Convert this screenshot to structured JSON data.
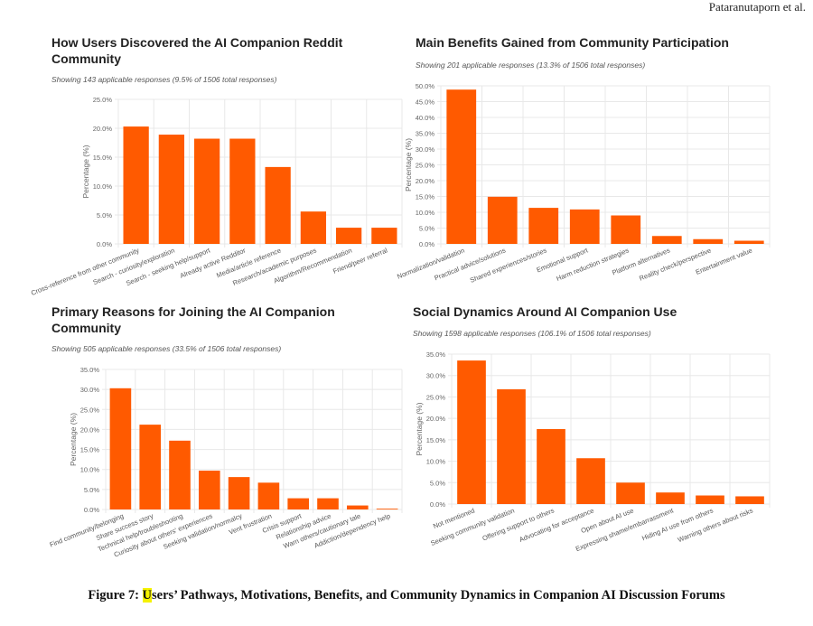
{
  "running_head": "Pataranutaporn et al.",
  "colors": {
    "bar": "#FF5A00",
    "grid": "#e8e8e8",
    "axis_text": "#666666"
  },
  "caption": {
    "label": "Figure 7:",
    "highlight": "U",
    "text": "sers’ Pathways, Motivations, Benefits, and Community Dynamics in Companion AI Discussion Forums"
  },
  "chart_data": [
    {
      "type": "bar",
      "title": "How Users Discovered the AI Companion Reddit Community",
      "subtitle": "Showing 143 applicable responses (9.5% of 1506 total responses)",
      "xlabel": "",
      "ylabel": "Percentage (%)",
      "ylim": [
        0,
        25
      ],
      "ytick_step": 5,
      "yticks": [
        "0.0%",
        "5.0%",
        "10.0%",
        "15.0%",
        "20.0%",
        "25.0%"
      ],
      "grid": true,
      "categories": [
        "Cross-reference from other community",
        "Search - curiosity/exploration",
        "Search - seeking help/support",
        "Already active Redditor",
        "Media/article reference",
        "Research/academic purposes",
        "Algorithm/Recommendation",
        "Friend/peer referral"
      ],
      "values": [
        20.3,
        18.9,
        18.2,
        18.2,
        13.3,
        5.6,
        2.8,
        2.8
      ]
    },
    {
      "type": "bar",
      "title": "Main Benefits Gained from Community Participation",
      "subtitle": "Showing 201 applicable responses (13.3% of 1506 total responses)",
      "xlabel": "",
      "ylabel": "Percentage (%)",
      "ylim": [
        0,
        50
      ],
      "ytick_step": 5,
      "yticks": [
        "0.0%",
        "5.0%",
        "10.0%",
        "15.0%",
        "20.0%",
        "25.0%",
        "30.0%",
        "35.0%",
        "40.0%",
        "45.0%",
        "50.0%"
      ],
      "grid": true,
      "categories": [
        "Normalization/validation",
        "Practical advice/solutions",
        "Shared experiences/stories",
        "Emotional support",
        "Harm reduction strategies",
        "Platform alternatives",
        "Reality check/perspective",
        "Entertainment value"
      ],
      "values": [
        48.8,
        14.9,
        11.4,
        10.9,
        9.0,
        2.5,
        1.5,
        1.0
      ]
    },
    {
      "type": "bar",
      "title": "Primary Reasons for Joining the AI Companion Community",
      "subtitle": "Showing 505 applicable responses (33.5% of 1506 total responses)",
      "xlabel": "",
      "ylabel": "Percentage (%)",
      "ylim": [
        0,
        35
      ],
      "ytick_step": 5,
      "yticks": [
        "0.0%",
        "5.0%",
        "10.0%",
        "15.0%",
        "20.0%",
        "25.0%",
        "30.0%",
        "35.0%"
      ],
      "grid": true,
      "categories": [
        "Find community/belonging",
        "Share success story",
        "Technical help/troubleshooting",
        "Curiosity about others' experiences",
        "Seeking validation/normalcy",
        "Vent frustration",
        "Crisis support",
        "Relationship advice",
        "Warn others/cautionary tale",
        "Addiction/dependency help"
      ],
      "values": [
        30.3,
        21.2,
        17.2,
        9.7,
        8.1,
        6.7,
        2.8,
        2.8,
        1.0,
        0.2
      ]
    },
    {
      "type": "bar",
      "title": "Social Dynamics Around AI Companion Use",
      "subtitle": "Showing 1598 applicable responses (106.1% of 1506 total responses)",
      "xlabel": "",
      "ylabel": "Percentage (%)",
      "ylim": [
        0,
        35
      ],
      "ytick_step": 5,
      "yticks": [
        "0.0%",
        "5.0%",
        "10.0%",
        "15.0%",
        "20.0%",
        "25.0%",
        "30.0%",
        "35.0%"
      ],
      "grid": true,
      "categories": [
        "Not mentioned",
        "Seeking community validation",
        "Offering support to others",
        "Advocating for acceptance",
        "Open about AI use",
        "Expressing shame/embarrassment",
        "Hiding AI use from others",
        "Warning others about risks"
      ],
      "values": [
        33.5,
        26.8,
        17.5,
        10.7,
        5.0,
        2.7,
        2.0,
        1.8
      ]
    }
  ]
}
